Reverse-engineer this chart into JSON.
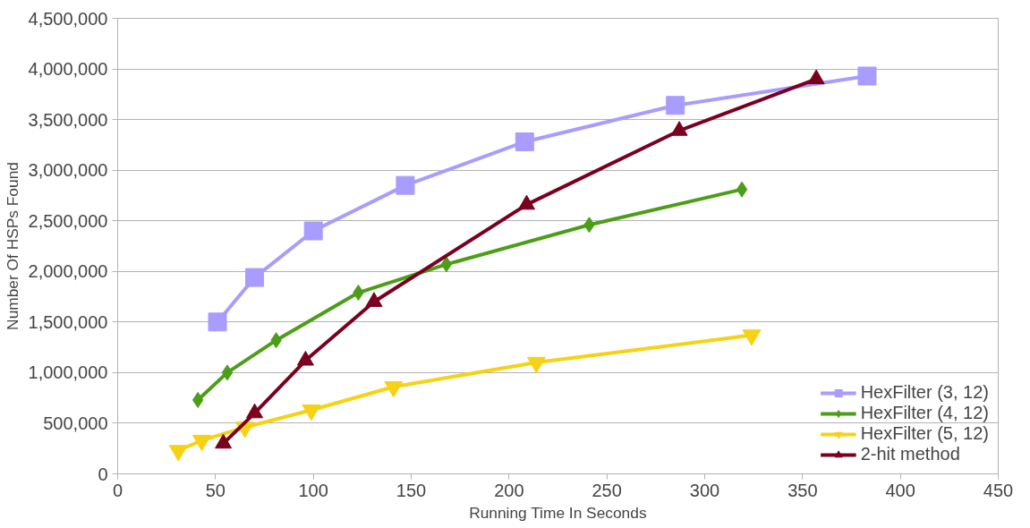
{
  "chart_data": {
    "type": "line",
    "xlabel": "Running Time In Seconds",
    "ylabel": "Number Of HSPs Found",
    "xlim": [
      0,
      450
    ],
    "xticks": [
      0,
      50,
      100,
      150,
      200,
      250,
      300,
      350,
      400,
      450
    ],
    "ylim": [
      0,
      4500000
    ],
    "yticks": [
      {
        "value": 0,
        "label": "0"
      },
      {
        "value": 500000,
        "label": "500,000"
      },
      {
        "value": 1000000,
        "label": "1,000,000"
      },
      {
        "value": 1500000,
        "label": "1,500,000"
      },
      {
        "value": 2000000,
        "label": "2,000,000"
      },
      {
        "value": 2500000,
        "label": "2,500,000"
      },
      {
        "value": 3000000,
        "label": "3,000,000"
      },
      {
        "value": 3500000,
        "label": "3,500,000"
      },
      {
        "value": 4000000,
        "label": "4,000,000"
      },
      {
        "value": 4500000,
        "label": "4,500,000"
      }
    ],
    "grid": "y",
    "legend": "bottom right",
    "line_style": "solid",
    "series": [
      {
        "name": "HexFilter (3, 12)",
        "color": "#a89cff",
        "marker": "square",
        "x": [
          51,
          70,
          100,
          147,
          208,
          285,
          383
        ],
        "values": [
          1500000,
          1940000,
          2400000,
          2850000,
          3280000,
          3640000,
          3930000
        ]
      },
      {
        "name": "HexFilter (4, 12)",
        "color": "#4b9e16",
        "marker": "diamond",
        "x": [
          41,
          56,
          81,
          123,
          168,
          241,
          319
        ],
        "values": [
          730000,
          1000000,
          1320000,
          1790000,
          2070000,
          2460000,
          2810000
        ]
      },
      {
        "name": "HexFilter (5, 12)",
        "color": "#f5d214",
        "marker": "triangle_down",
        "x": [
          31,
          43,
          65,
          99,
          141,
          214,
          324
        ],
        "values": [
          230000,
          330000,
          460000,
          630000,
          860000,
          1100000,
          1370000
        ]
      },
      {
        "name": "2-hit method",
        "color": "#7b0020",
        "marker": "triangle",
        "x": [
          54,
          70,
          96,
          131,
          209,
          287,
          357
        ],
        "values": [
          300000,
          600000,
          1120000,
          1700000,
          2660000,
          3390000,
          3900000
        ]
      }
    ]
  }
}
